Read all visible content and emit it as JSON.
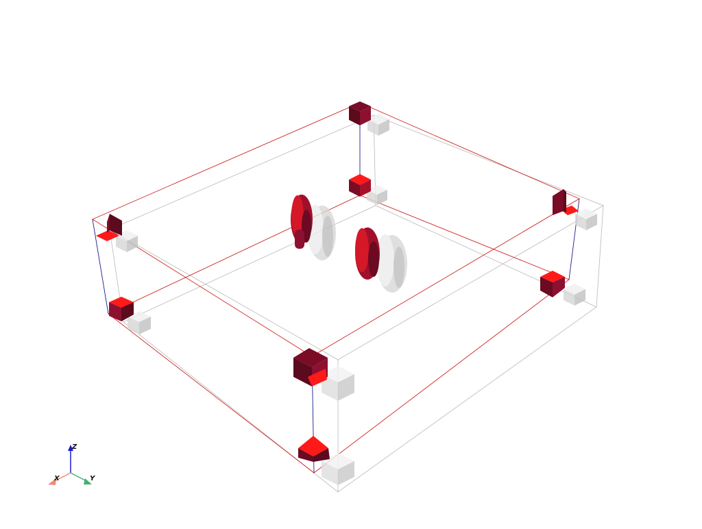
{
  "scene": {
    "background": "#ffffff",
    "colors": {
      "red_box_edge": "#cc2222",
      "blue_box_edge": "#1a1a8c",
      "gray_box_edge": "#b0b0b0",
      "red_light": "#ff1a1a",
      "red_dark": "#6b0a22",
      "red_mid": "#a0102a",
      "ghost_light": "#efefef",
      "ghost_mid": "#d8d8d8",
      "ghost_dark": "#bdbdbd"
    },
    "objects": {
      "red_boundary_box": "wireframe",
      "gray_boundary_box": "wireframe",
      "corner_red_blocks": 8,
      "corner_ghost_blocks": 8,
      "central_red_shapes": 2,
      "central_ghost_shapes": 2
    }
  },
  "axes_widget": {
    "x_label": "X",
    "y_label": "Y",
    "z_label": "Z",
    "x_color": "#f08a78",
    "y_color": "#3cb371",
    "z_color": "#1a1acd"
  }
}
